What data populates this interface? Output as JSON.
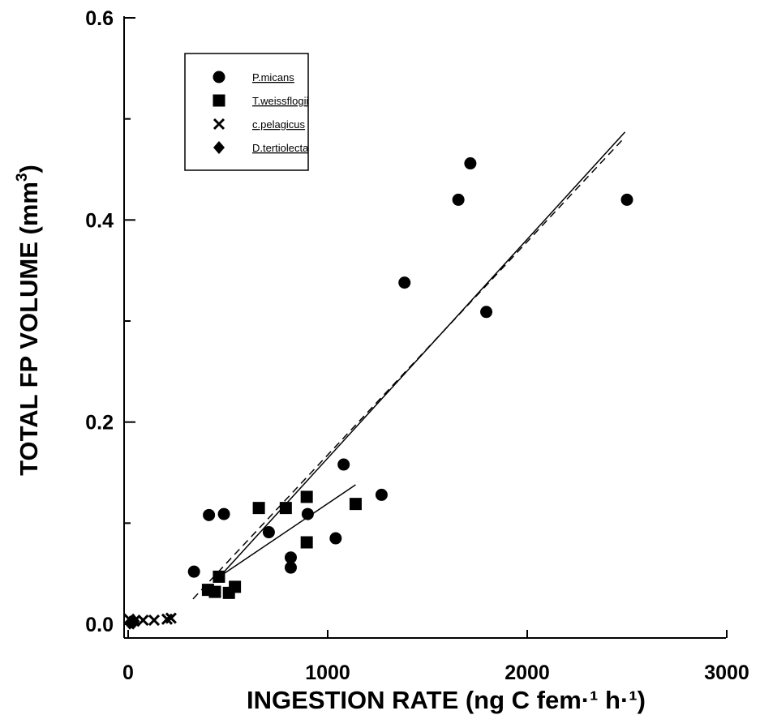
{
  "chart_data": {
    "type": "scatter",
    "xlabel": "INGESTION RATE (ng C fem·¹ h·¹)",
    "ylabel_main": "TOTAL FP VOLUME (mm",
    "ylabel_sup": "3",
    "ylabel_end": ")",
    "xlim": [
      0,
      3000
    ],
    "ylim": [
      0,
      0.6
    ],
    "x_ticks": [
      0,
      1000,
      2000,
      3000
    ],
    "x_tick_labels": [
      "0",
      "1000",
      "2000",
      "3000"
    ],
    "y_ticks": [
      0.0,
      0.2,
      0.4,
      0.6
    ],
    "y_tick_labels": [
      "0.0",
      "0.2",
      "0.4",
      "0.6"
    ],
    "y_minor_ticks": [
      0.1,
      0.3,
      0.5
    ],
    "grid": false,
    "legend_position": "top-left",
    "series": [
      {
        "name": "P.micans",
        "marker": "circle",
        "points": [
          [
            330,
            0.052
          ],
          [
            405,
            0.108
          ],
          [
            480,
            0.109
          ],
          [
            705,
            0.091
          ],
          [
            815,
            0.066
          ],
          [
            815,
            0.056
          ],
          [
            900,
            0.109
          ],
          [
            1040,
            0.085
          ],
          [
            1080,
            0.158
          ],
          [
            1270,
            0.128
          ],
          [
            1385,
            0.338
          ],
          [
            1655,
            0.42
          ],
          [
            1715,
            0.456
          ],
          [
            1795,
            0.309
          ],
          [
            2500,
            0.42
          ]
        ]
      },
      {
        "name": "T.weissflogii",
        "marker": "square",
        "points": [
          [
            400,
            0.034
          ],
          [
            435,
            0.032
          ],
          [
            455,
            0.047
          ],
          [
            505,
            0.031
          ],
          [
            535,
            0.037
          ],
          [
            655,
            0.115
          ],
          [
            790,
            0.115
          ],
          [
            895,
            0.126
          ],
          [
            895,
            0.081
          ],
          [
            1140,
            0.119
          ]
        ]
      },
      {
        "name": "c.pelagicus",
        "marker": "cross",
        "points": [
          [
            5,
            0.005
          ],
          [
            30,
            0.003
          ],
          [
            75,
            0.004
          ],
          [
            130,
            0.004
          ],
          [
            195,
            0.005
          ],
          [
            215,
            0.006
          ]
        ]
      },
      {
        "name": "D.tertiolecta",
        "marker": "diamond",
        "points": [
          [
            8,
            0.001
          ],
          [
            15,
            0.002
          ],
          [
            25,
            0.001
          ],
          [
            30,
            0.003
          ]
        ]
      }
    ],
    "fit_lines": [
      {
        "style": "solid",
        "from": [
          440,
          0.043
        ],
        "to": [
          2490,
          0.487
        ]
      },
      {
        "style": "solid",
        "from": [
          450,
          0.046
        ],
        "to": [
          1140,
          0.138
        ]
      },
      {
        "style": "dashed",
        "from": [
          325,
          0.025
        ],
        "to": [
          2490,
          0.482
        ]
      }
    ]
  }
}
